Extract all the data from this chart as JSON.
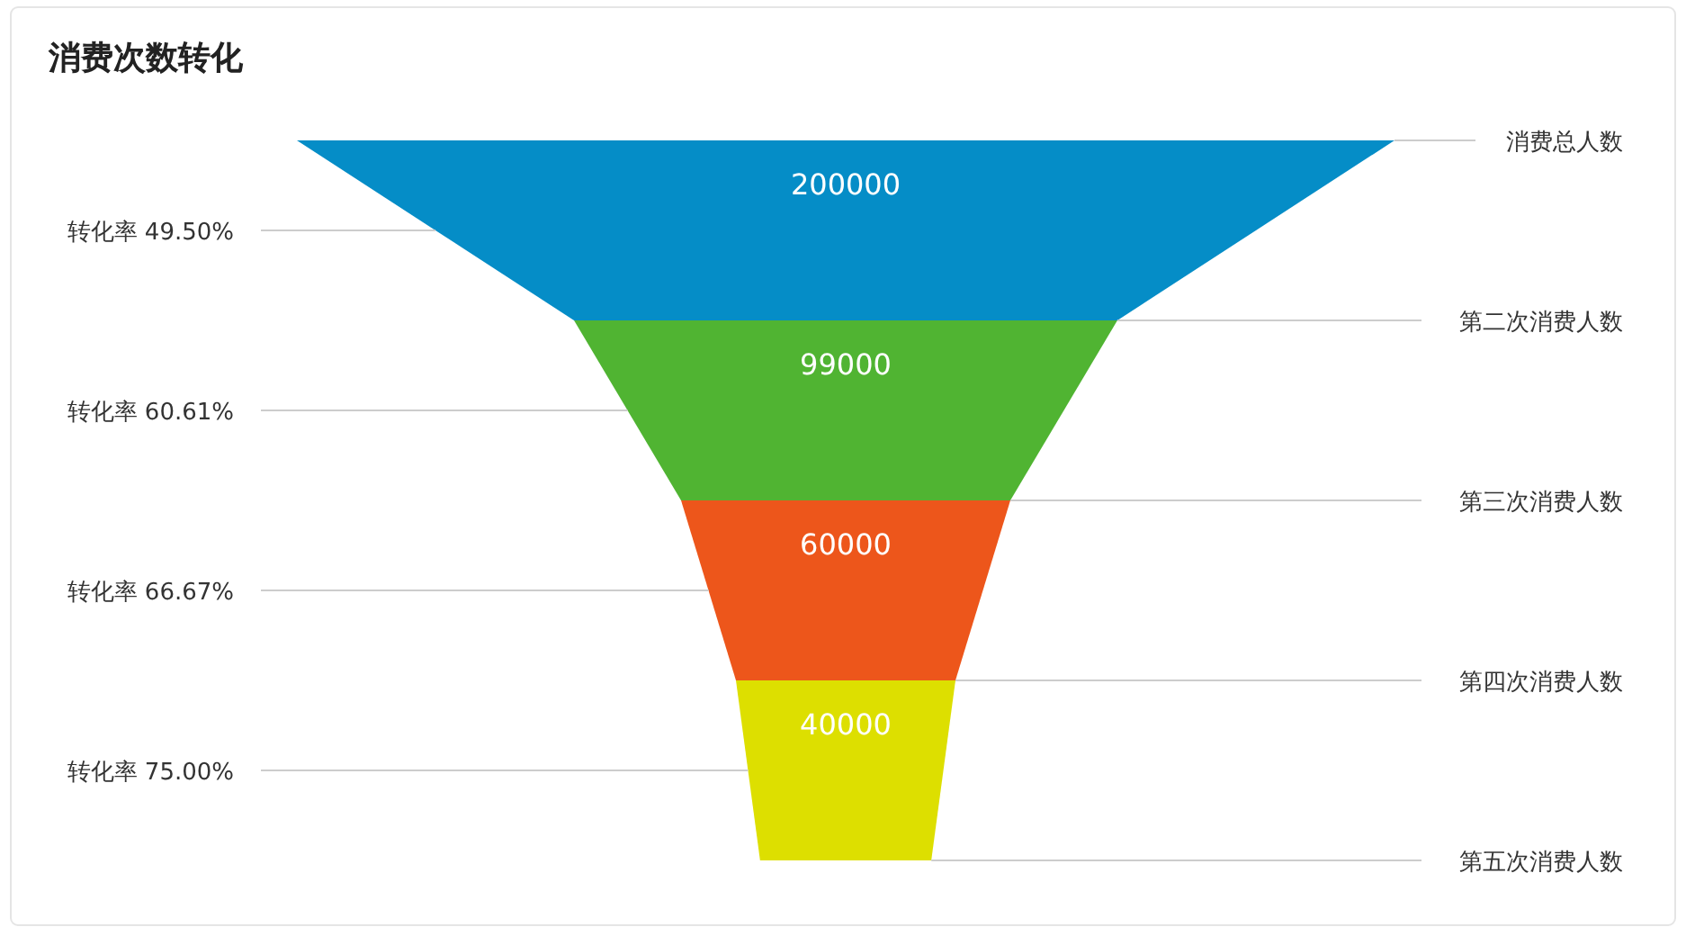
{
  "chart_data": {
    "type": "other",
    "title": "消费次数转化",
    "categories": [
      "消费总人数",
      "第二次消费人数",
      "第三次消费人数",
      "第四次消费人数"
    ],
    "values": [
      200000,
      99000,
      60000,
      40000
    ],
    "colors": [
      "#058dc7",
      "#50b432",
      "#ed561b",
      "#dddf00"
    ],
    "data_labels": true,
    "annotations": [
      "转化率 49.50%",
      "转化率 60.61%",
      "转化率 66.67%",
      "转化率 75.00%",
      "第五次消费人数"
    ]
  }
}
